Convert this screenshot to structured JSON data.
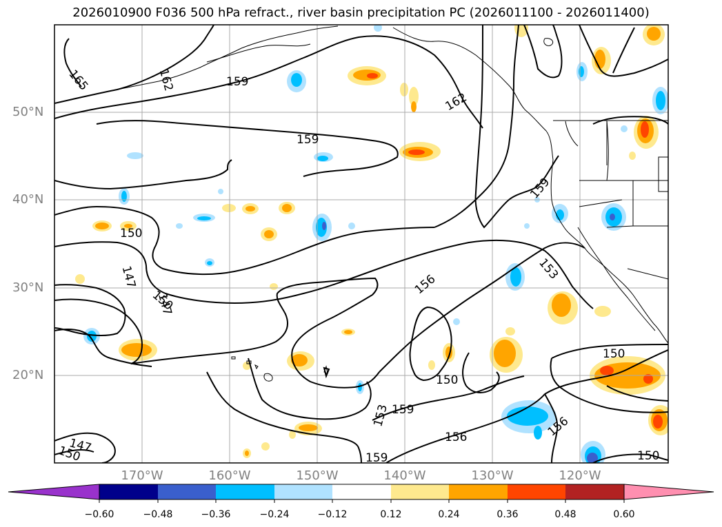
{
  "title": "2026010900 F036 500 hPa refract., river basin precipitation PC (2026011100 - 2026011400)",
  "latitude_labels": [
    "50°N",
    "40°N",
    "30°N",
    "20°N"
  ],
  "longitude_labels": [
    "170°W",
    "160°W",
    "150°W",
    "140°W",
    "130°W",
    "120°W"
  ],
  "contour_labels": [
    "165",
    "162",
    "159",
    "162",
    "159",
    "159",
    "150",
    "147",
    "147",
    "150",
    "156",
    "153",
    "150",
    "150",
    "159",
    "153",
    "156",
    "159",
    "156",
    "147",
    "150",
    "150"
  ],
  "colorbar": {
    "ticks": [
      "−0.60",
      "−0.48",
      "−0.36",
      "−0.24",
      "−0.12",
      "0.12",
      "0.24",
      "0.36",
      "0.48",
      "0.60"
    ],
    "colors": [
      "#9932cc",
      "#00008b",
      "#3a5fcd",
      "#00bfff",
      "#b0e2ff",
      "#ffffff",
      "#fee98e",
      "#ffa500",
      "#ff4500",
      "#b22222",
      "#ff8fb0"
    ]
  }
}
